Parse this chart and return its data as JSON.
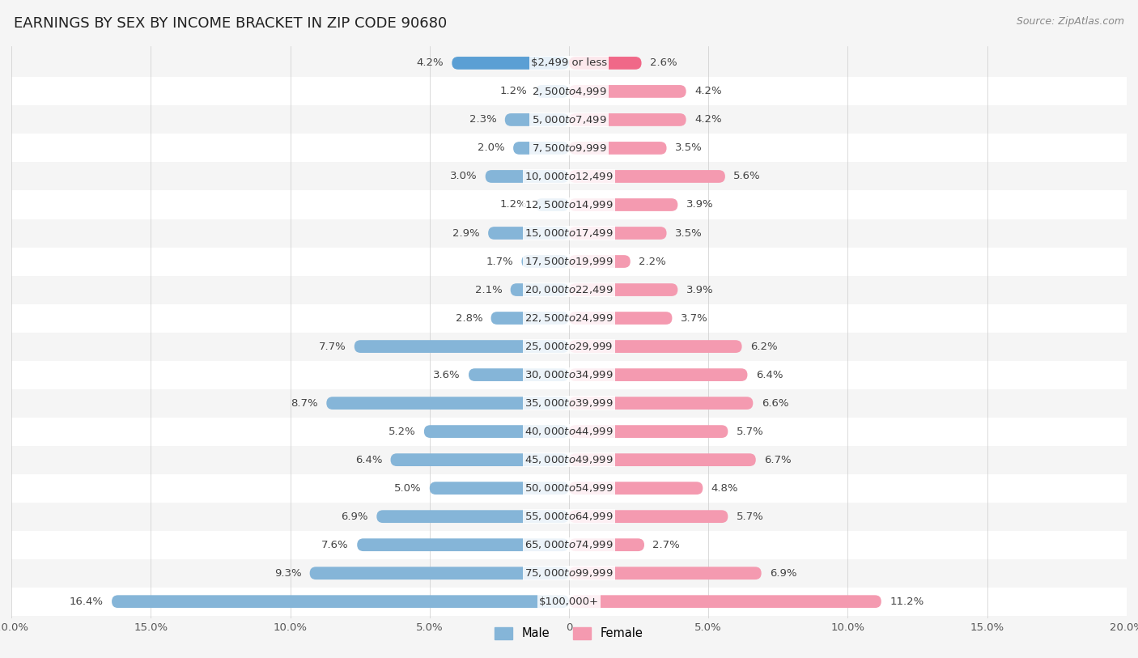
{
  "title": "EARNINGS BY SEX BY INCOME BRACKET IN ZIP CODE 90680",
  "source": "Source: ZipAtlas.com",
  "categories": [
    "$2,499 or less",
    "$2,500 to $4,999",
    "$5,000 to $7,499",
    "$7,500 to $9,999",
    "$10,000 to $12,499",
    "$12,500 to $14,999",
    "$15,000 to $17,499",
    "$17,500 to $19,999",
    "$20,000 to $22,499",
    "$22,500 to $24,999",
    "$25,000 to $29,999",
    "$30,000 to $34,999",
    "$35,000 to $39,999",
    "$40,000 to $44,999",
    "$45,000 to $49,999",
    "$50,000 to $54,999",
    "$55,000 to $64,999",
    "$65,000 to $74,999",
    "$75,000 to $99,999",
    "$100,000+"
  ],
  "male_values": [
    4.2,
    1.2,
    2.3,
    2.0,
    3.0,
    1.2,
    2.9,
    1.7,
    2.1,
    2.8,
    7.7,
    3.6,
    8.7,
    5.2,
    6.4,
    5.0,
    6.9,
    7.6,
    9.3,
    16.4
  ],
  "female_values": [
    2.6,
    4.2,
    4.2,
    3.5,
    5.6,
    3.9,
    3.5,
    2.2,
    3.9,
    3.7,
    6.2,
    6.4,
    6.6,
    5.7,
    6.7,
    4.8,
    5.7,
    2.7,
    6.9,
    11.2
  ],
  "male_color": "#85b5d8",
  "female_color": "#f49ab0",
  "male_highlight_color": "#5b9fd4",
  "female_highlight_color": "#f06888",
  "row_color_even": "#f5f5f5",
  "row_color_odd": "#ffffff",
  "xlim": 20.0,
  "background_color": "#f5f5f5",
  "title_fontsize": 13,
  "label_fontsize": 9.5,
  "source_fontsize": 9
}
